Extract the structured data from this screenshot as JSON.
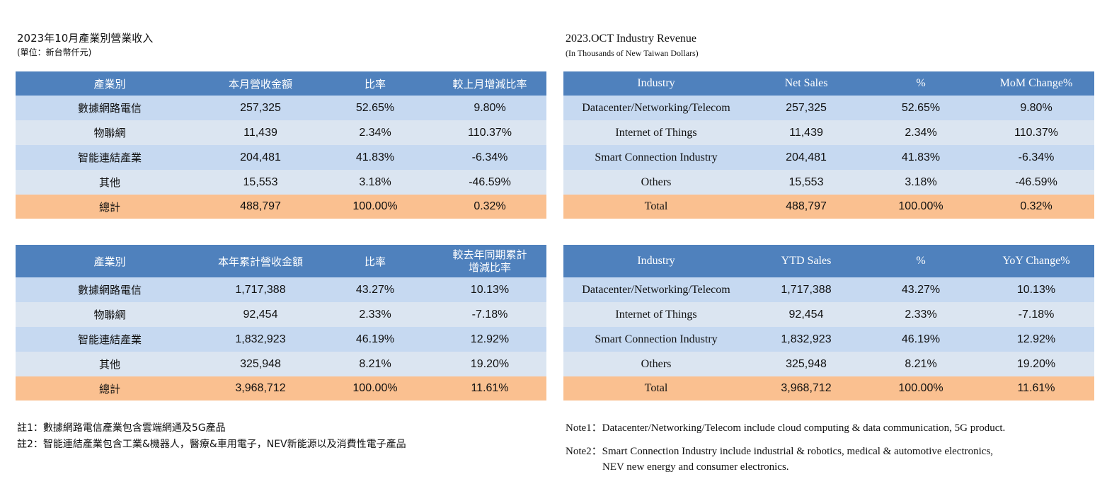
{
  "zh": {
    "title": "2023年10月產業別營業收入",
    "unit": "(單位：新台幣仟元)",
    "monthly": {
      "headers": [
        "產業別",
        "本月營收金額",
        "比率",
        "較上月增減比率"
      ],
      "rows": [
        [
          "數據網路電信",
          "257,325",
          "52.65%",
          "9.80%"
        ],
        [
          "物聯網",
          "11,439",
          "2.34%",
          "110.37%"
        ],
        [
          "智能連結產業",
          "204,481",
          "41.83%",
          "-6.34%"
        ],
        [
          "其他",
          "15,553",
          "3.18%",
          "-46.59%"
        ]
      ],
      "total": [
        "總計",
        "488,797",
        "100.00%",
        "0.32%"
      ]
    },
    "ytd": {
      "headers": [
        "產業別",
        "本年累計營收金額",
        "比率",
        "較去年同期累計",
        "增減比率"
      ],
      "rows": [
        [
          "數據網路電信",
          "1,717,388",
          "43.27%",
          "10.13%"
        ],
        [
          "物聯網",
          "92,454",
          "2.33%",
          "-7.18%"
        ],
        [
          "智能連結產業",
          "1,832,923",
          "46.19%",
          "12.92%"
        ],
        [
          "其他",
          "325,948",
          "8.21%",
          "19.20%"
        ]
      ],
      "total": [
        "總計",
        "3,968,712",
        "100.00%",
        "11.61%"
      ]
    },
    "notes": [
      "註1：數據網路電信產業包含雲端網通及5G產品",
      "註2：智能連結產業包含工業&機器人，醫療&車用電子，NEV新能源以及消費性電子產品"
    ]
  },
  "en": {
    "title": "2023.OCT Industry Revenue",
    "unit": "(In Thousands of New Taiwan Dollars)",
    "monthly": {
      "headers": [
        "Industry",
        "Net Sales",
        "%",
        "MoM Change%"
      ],
      "rows": [
        [
          "Datacenter/Networking/Telecom",
          "257,325",
          "52.65%",
          "9.80%"
        ],
        [
          "Internet of Things",
          "11,439",
          "2.34%",
          "110.37%"
        ],
        [
          "Smart Connection Industry",
          "204,481",
          "41.83%",
          "-6.34%"
        ],
        [
          "Others",
          "15,553",
          "3.18%",
          "-46.59%"
        ]
      ],
      "total": [
        "Total",
        "488,797",
        "100.00%",
        "0.32%"
      ]
    },
    "ytd": {
      "headers": [
        "Industry",
        "YTD Sales",
        "%",
        "YoY Change%"
      ],
      "rows": [
        [
          "Datacenter/Networking/Telecom",
          "1,717,388",
          "43.27%",
          "10.13%"
        ],
        [
          "Internet of Things",
          "92,454",
          "2.33%",
          "-7.18%"
        ],
        [
          "Smart Connection Industry",
          "1,832,923",
          "46.19%",
          "12.92%"
        ],
        [
          "Others",
          "325,948",
          "8.21%",
          "19.20%"
        ]
      ],
      "total": [
        "Total",
        "3,968,712",
        "100.00%",
        "11.61%"
      ]
    },
    "notes": {
      "note1": "Note1：Datacenter/Networking/Telecom include cloud computing & data communication, 5G product.",
      "note2_line1": "Note2：Smart Connection Industry include industrial & robotics, medical & automotive electronics,",
      "note2_line2": "NEV new energy and consumer electronics."
    }
  }
}
